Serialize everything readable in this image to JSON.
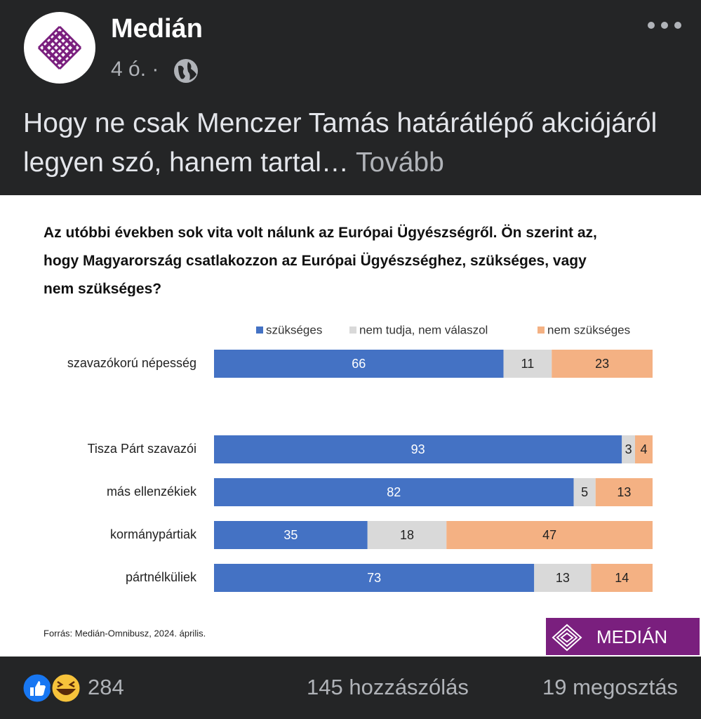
{
  "post": {
    "author": "Medián",
    "time": "4 ó.",
    "separator": "·",
    "text": "Hogy ne csak Menczer Tamás határátlépő akciójáról legyen szó, hanem tartal…",
    "more": "Tovább"
  },
  "chart_data": {
    "type": "bar",
    "orientation": "horizontal",
    "stacked": true,
    "title": "Az utóbbi években sok vita volt nálunk az Európai Ügyészségről. Ön szerint az, hogy Magyarország csatlakozzon az Európai Ügyészséghez, szükséges, vagy nem szükséges?",
    "categories": [
      "szavazókorú népesség",
      "Tisza Párt szavazói",
      "más ellenzékiek",
      "kormánypártiak",
      "pártnélküliek"
    ],
    "series": [
      {
        "name": "szükséges",
        "color": "#4472c4",
        "values": [
          66,
          93,
          82,
          35,
          73
        ]
      },
      {
        "name": "nem tudja, nem válaszol",
        "color": "#d9d9d9",
        "values": [
          11,
          3,
          5,
          18,
          13
        ]
      },
      {
        "name": "nem szükséges",
        "color": "#f4b183",
        "values": [
          23,
          4,
          13,
          47,
          14
        ]
      }
    ],
    "source": "Forrás: Medián-Omnibusz, 2024. április.",
    "logo": "MEDIÁN"
  },
  "footer": {
    "reactions": 284,
    "comments": "145 hozzászólás",
    "shares": "19 megosztás"
  }
}
